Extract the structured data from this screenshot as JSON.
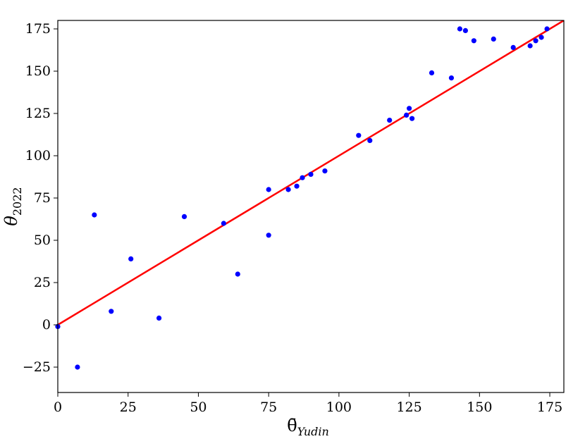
{
  "chart_data": {
    "type": "scatter",
    "xlabel": "θ̄",
    "xlabel_subscript": "Yudin",
    "ylabel": "θ",
    "ylabel_subscript": "2022",
    "xlim": [
      0,
      180
    ],
    "ylim": [
      -40,
      180
    ],
    "xticks": [
      0,
      25,
      50,
      75,
      100,
      125,
      150,
      175
    ],
    "yticks": [
      -25,
      0,
      25,
      50,
      75,
      100,
      125,
      150,
      175
    ],
    "xtick_labels": [
      "0",
      "25",
      "50",
      "75",
      "100",
      "125",
      "150",
      "175"
    ],
    "ytick_labels": [
      "−25",
      "0",
      "25",
      "50",
      "75",
      "100",
      "125",
      "150",
      "175"
    ],
    "grid": false,
    "series": [
      {
        "kind": "scatter",
        "color": "#0000ff",
        "points": [
          [
            0,
            -1
          ],
          [
            7,
            -25
          ],
          [
            13,
            65
          ],
          [
            19,
            8
          ],
          [
            26,
            39
          ],
          [
            36,
            4
          ],
          [
            45,
            64
          ],
          [
            59,
            60
          ],
          [
            64,
            30
          ],
          [
            75,
            80
          ],
          [
            75,
            53
          ],
          [
            82,
            80
          ],
          [
            85,
            82
          ],
          [
            87,
            87
          ],
          [
            90,
            89
          ],
          [
            95,
            91
          ],
          [
            107,
            112
          ],
          [
            111,
            109
          ],
          [
            118,
            121
          ],
          [
            124,
            124
          ],
          [
            125,
            128
          ],
          [
            126,
            122
          ],
          [
            133,
            149
          ],
          [
            140,
            146
          ],
          [
            143,
            175
          ],
          [
            145,
            174
          ],
          [
            148,
            168
          ],
          [
            155,
            169
          ],
          [
            162,
            164
          ],
          [
            168,
            165
          ],
          [
            170,
            168
          ],
          [
            172,
            170
          ],
          [
            174,
            175
          ]
        ]
      },
      {
        "kind": "line",
        "color": "#ff0000",
        "points": [
          [
            0,
            0
          ],
          [
            180,
            180
          ]
        ]
      }
    ]
  }
}
